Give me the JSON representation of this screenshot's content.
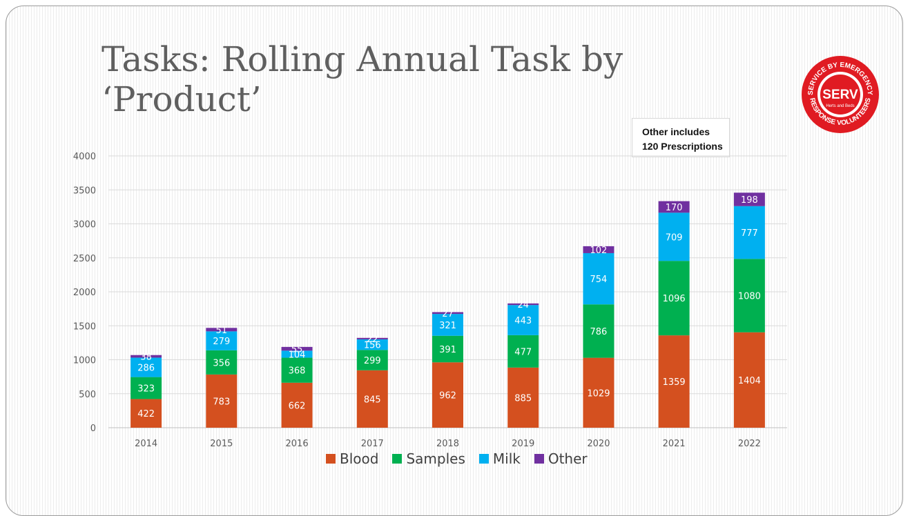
{
  "slide": {
    "title": "Tasks: Rolling Annual Task by ‘Product’",
    "logo": {
      "icon": "serv-logo-icon",
      "top_text": "SERVICE BY EMERGENCY",
      "center_text": "SERV",
      "sub_text": "Herts and Beds",
      "bottom_text": "RESPONSE VOLUNTEERS",
      "color": "#e01b22"
    },
    "note": {
      "line1": "Other includes",
      "line2": "120 Prescriptions"
    }
  },
  "chart_data": {
    "type": "bar",
    "stacked": true,
    "categories": [
      "2014",
      "2015",
      "2016",
      "2017",
      "2018",
      "2019",
      "2020",
      "2021",
      "2022"
    ],
    "series": [
      {
        "name": "Blood",
        "color": "#d4501f",
        "values": [
          422,
          783,
          662,
          845,
          962,
          885,
          1029,
          1359,
          1404
        ]
      },
      {
        "name": "Samples",
        "color": "#00b050",
        "values": [
          323,
          356,
          368,
          299,
          391,
          477,
          786,
          1096,
          1080
        ]
      },
      {
        "name": "Milk",
        "color": "#00b0f0",
        "values": [
          286,
          279,
          104,
          156,
          321,
          443,
          754,
          709,
          777
        ]
      },
      {
        "name": "Other",
        "color": "#7030a0",
        "values": [
          38,
          51,
          55,
          22,
          27,
          24,
          102,
          170,
          198
        ]
      }
    ],
    "yticks": [
      "0",
      "500",
      "1000",
      "1500",
      "2000",
      "2500",
      "3000",
      "3500",
      "4000"
    ],
    "ylim": [
      0,
      4000
    ],
    "grid": true,
    "legend_position": "bottom"
  }
}
